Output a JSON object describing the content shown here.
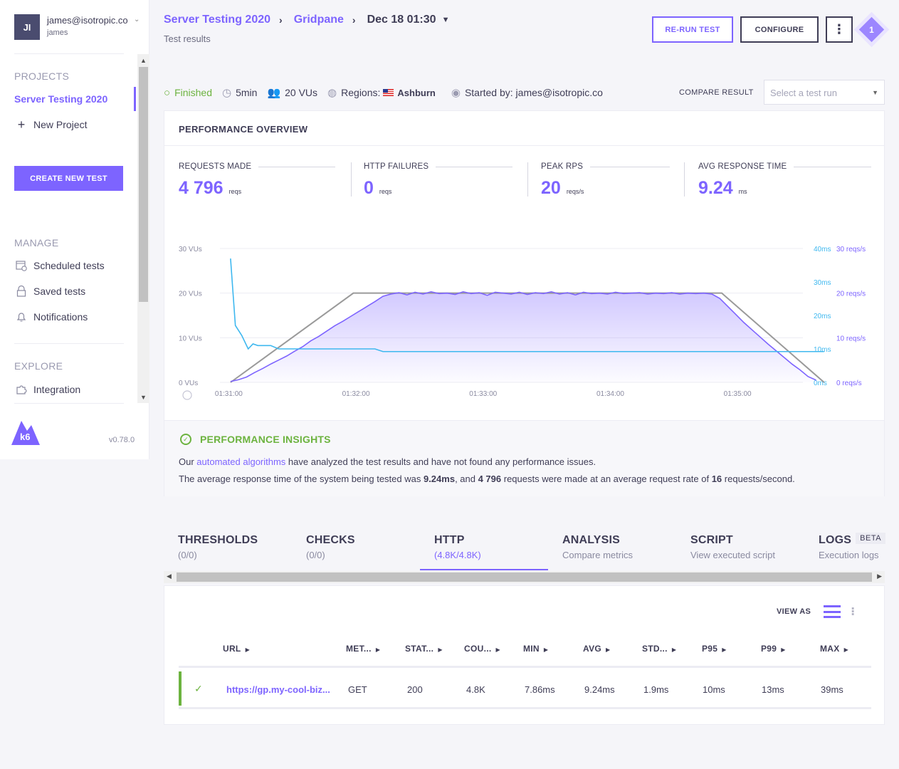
{
  "user": {
    "initials": "JI",
    "email": "james@isotropic.co",
    "name": "james"
  },
  "sidebar": {
    "projects_heading": "PROJECTS",
    "active_project": "Server Testing 2020",
    "new_project": "New Project",
    "create_button": "CREATE NEW TEST",
    "manage_heading": "MANAGE",
    "manage_items": [
      {
        "label": "Scheduled tests",
        "icon": "calendar-clock-icon"
      },
      {
        "label": "Saved tests",
        "icon": "lock-icon"
      },
      {
        "label": "Notifications",
        "icon": "bell-icon"
      }
    ],
    "explore_heading": "EXPLORE",
    "explore_items": [
      {
        "label": "Integration",
        "icon": "puzzle-icon"
      }
    ],
    "logo_text": "k6",
    "version": "v0.78.0"
  },
  "header": {
    "crumb_project": "Server Testing 2020",
    "crumb_test": "Gridpane",
    "crumb_date": "Dec 18 01:30",
    "subtitle": "Test results",
    "rerun_label": "RE-RUN TEST",
    "configure_label": "CONFIGURE",
    "more_label": "⋮",
    "notification_count": "1"
  },
  "status": {
    "state": "Finished",
    "duration": "5min",
    "vus": "20 VUs",
    "regions_label": "Regions:",
    "region": "Ashburn",
    "started_by": "Started by: james@isotropic.co",
    "compare_label": "COMPARE RESULT",
    "compare_placeholder": "Select a test run"
  },
  "overview": {
    "title": "PERFORMANCE OVERVIEW",
    "metrics": [
      {
        "label": "REQUESTS MADE",
        "value": "4 796",
        "unit": "reqs"
      },
      {
        "label": "HTTP FAILURES",
        "value": "0",
        "unit": "reqs"
      },
      {
        "label": "PEAK RPS",
        "value": "20",
        "unit": "reqs/s"
      },
      {
        "label": "AVG RESPONSE TIME",
        "value": "9.24",
        "unit": "ms"
      }
    ]
  },
  "chart_data": {
    "type": "line",
    "x_ticks": [
      "01:31:00",
      "01:32:00",
      "01:33:00",
      "01:34:00",
      "01:35:00"
    ],
    "y_left_ticks": [
      "0 VUs",
      "10 VUs",
      "20 VUs",
      "30 VUs"
    ],
    "y_left_range": [
      0,
      30
    ],
    "y_right_ms_ticks": [
      "0ms",
      "10ms",
      "20ms",
      "30ms",
      "40ms"
    ],
    "y_right_ms_range": [
      0,
      40
    ],
    "y_right_rps_ticks": [
      "0 reqs/s",
      "10 reqs/s",
      "20 reqs/s",
      "30 reqs/s"
    ],
    "y_right_rps_range": [
      0,
      30
    ],
    "x_range_seconds": [
      -5,
      270
    ],
    "series": [
      {
        "color": "#9a9a9a",
        "points": [
          [
            0,
            0
          ],
          [
            60,
            20
          ],
          [
            240,
            20
          ],
          [
            290,
            0
          ]
        ]
      },
      {
        "color": "#7d64ff",
        "fill": true,
        "points": [
          [
            0,
            0.2
          ],
          [
            5,
            0.6
          ],
          [
            10,
            1.2
          ],
          [
            15,
            2.2
          ],
          [
            20,
            3.1
          ],
          [
            25,
            4.1
          ],
          [
            30,
            5.0
          ],
          [
            35,
            5.9
          ],
          [
            40,
            7.0
          ],
          [
            45,
            8.0
          ],
          [
            50,
            9.3
          ],
          [
            55,
            10.3
          ],
          [
            60,
            11.5
          ],
          [
            65,
            12.7
          ],
          [
            70,
            13.7
          ],
          [
            75,
            14.8
          ],
          [
            80,
            15.9
          ],
          [
            85,
            17.0
          ],
          [
            90,
            18.1
          ],
          [
            95,
            19.3
          ],
          [
            100,
            19.8
          ],
          [
            105,
            20.1
          ],
          [
            110,
            19.6
          ],
          [
            115,
            20.2
          ],
          [
            120,
            19.8
          ],
          [
            125,
            20.3
          ],
          [
            130,
            19.9
          ],
          [
            135,
            20.0
          ],
          [
            140,
            19.7
          ],
          [
            145,
            20.3
          ],
          [
            150,
            19.9
          ],
          [
            155,
            20.1
          ],
          [
            160,
            19.5
          ],
          [
            165,
            20.2
          ],
          [
            170,
            20.0
          ],
          [
            175,
            19.8
          ],
          [
            180,
            20.2
          ],
          [
            185,
            19.7
          ],
          [
            190,
            20.1
          ],
          [
            195,
            19.9
          ],
          [
            200,
            20.3
          ],
          [
            205,
            19.8
          ],
          [
            210,
            20.1
          ],
          [
            215,
            19.6
          ],
          [
            220,
            20.2
          ],
          [
            225,
            19.9
          ],
          [
            230,
            20.0
          ],
          [
            235,
            19.8
          ],
          [
            240,
            20.2
          ],
          [
            245,
            19.9
          ],
          [
            250,
            20.0
          ],
          [
            255,
            20.1
          ],
          [
            260,
            19.8
          ],
          [
            265,
            20.0
          ],
          [
            270,
            19.9
          ],
          [
            275,
            20.1
          ],
          [
            280,
            19.8
          ],
          [
            285,
            20.0
          ],
          [
            290,
            19.9
          ],
          [
            295,
            20.0
          ],
          [
            300,
            19.8
          ],
          [
            305,
            18.8
          ],
          [
            310,
            17.0
          ],
          [
            315,
            15.2
          ],
          [
            320,
            13.4
          ],
          [
            325,
            11.8
          ],
          [
            330,
            10.2
          ],
          [
            335,
            8.6
          ],
          [
            340,
            7.1
          ],
          [
            345,
            5.6
          ],
          [
            350,
            4.1
          ],
          [
            355,
            2.8
          ],
          [
            360,
            1.3
          ],
          [
            365,
            0.5
          ]
        ]
      },
      {
        "color": "#3fb8ef",
        "axis": "ms",
        "points": [
          [
            0,
            37
          ],
          [
            3,
            17
          ],
          [
            7,
            14
          ],
          [
            11,
            10
          ],
          [
            14,
            11.5
          ],
          [
            17,
            11
          ],
          [
            25,
            11
          ],
          [
            30,
            10
          ],
          [
            90,
            10
          ],
          [
            95,
            9.2
          ],
          [
            370,
            9.2
          ]
        ]
      }
    ]
  },
  "insights": {
    "title": "PERFORMANCE INSIGHTS",
    "line1_a": "Our ",
    "line1_link": "automated algorithms",
    "line1_b": " have analyzed the test results and have not found any performance issues.",
    "line2_a": "The average response time of the system being tested was ",
    "line2_avg": "9.24ms",
    "line2_b": ", and ",
    "line2_reqs": "4 796",
    "line2_c": " requests were made at an average request rate of ",
    "line2_rate": "16",
    "line2_d": " requests/second."
  },
  "tabs": [
    {
      "title": "THRESHOLDS",
      "sub": "(0/0)"
    },
    {
      "title": "CHECKS",
      "sub": "(0/0)"
    },
    {
      "title": "HTTP",
      "sub": "(4.8K/4.8K)"
    },
    {
      "title": "ANALYSIS",
      "sub": "Compare metrics"
    },
    {
      "title": "SCRIPT",
      "sub": "View executed script"
    },
    {
      "title": "LOGS",
      "sub": "Execution logs",
      "badge": "BETA"
    }
  ],
  "http_table": {
    "view_as": "VIEW AS",
    "columns": [
      "URL",
      "MET...",
      "STAT...",
      "COU...",
      "MIN",
      "AVG",
      "STD...",
      "P95",
      "P99",
      "MAX"
    ],
    "rows": [
      [
        "https://gp.my-cool-biz...",
        "GET",
        "200",
        "4.8K",
        "7.86ms",
        "9.24ms",
        "1.9ms",
        "10ms",
        "13ms",
        "39ms"
      ]
    ]
  }
}
